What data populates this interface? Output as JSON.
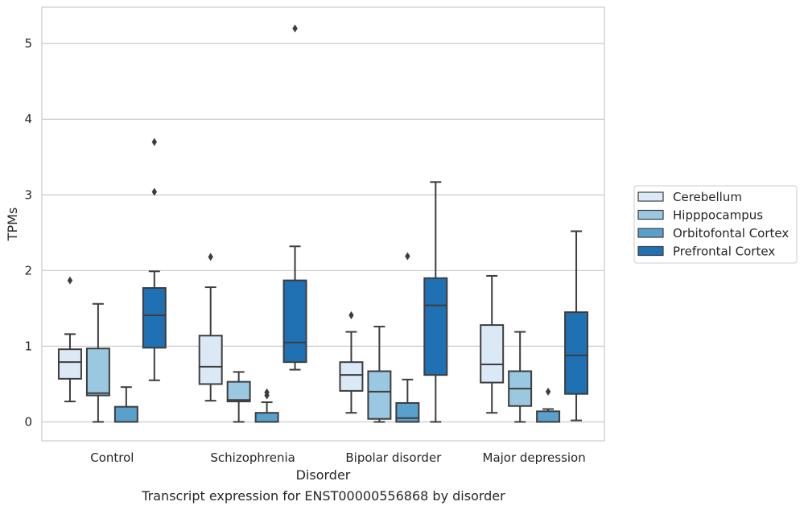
{
  "chart_data": {
    "type": "box",
    "title": "Transcript expression for ENST00000556868 by disorder",
    "xlabel": "Disorder",
    "ylabel": "TPMs",
    "ylim": [
      -0.25,
      5.48
    ],
    "yticks": [
      0,
      1,
      2,
      3,
      4,
      5
    ],
    "categories": [
      "Control",
      "Schizophrenia",
      "Bipolar disorder",
      "Major depression"
    ],
    "grid": "horizontal",
    "legend_position": "right",
    "series": [
      {
        "name": "Cerebellum",
        "color": "#dbe9f6",
        "boxes": [
          {
            "whislo": 0.27,
            "q1": 0.57,
            "med": 0.79,
            "q3": 0.96,
            "whishi": 1.16,
            "fliers": [
              1.87
            ]
          },
          {
            "whislo": 0.28,
            "q1": 0.5,
            "med": 0.73,
            "q3": 1.14,
            "whishi": 1.78,
            "fliers": [
              2.18
            ]
          },
          {
            "whislo": 0.12,
            "q1": 0.41,
            "med": 0.62,
            "q3": 0.79,
            "whishi": 1.19,
            "fliers": [
              1.41
            ]
          },
          {
            "whislo": 0.12,
            "q1": 0.52,
            "med": 0.76,
            "q3": 1.28,
            "whishi": 1.93,
            "fliers": []
          }
        ]
      },
      {
        "name": "Hipppocampus",
        "color": "#9ac8e0",
        "boxes": [
          {
            "whislo": 0.0,
            "q1": 0.35,
            "med": 0.38,
            "q3": 0.97,
            "whishi": 1.56,
            "fliers": []
          },
          {
            "whislo": 0.0,
            "q1": 0.27,
            "med": 0.29,
            "q3": 0.53,
            "whishi": 0.66,
            "fliers": []
          },
          {
            "whislo": 0.0,
            "q1": 0.04,
            "med": 0.4,
            "q3": 0.67,
            "whishi": 1.26,
            "fliers": []
          },
          {
            "whislo": 0.0,
            "q1": 0.21,
            "med": 0.44,
            "q3": 0.67,
            "whishi": 1.19,
            "fliers": []
          }
        ]
      },
      {
        "name": "Orbitofontal Cortex",
        "color": "#5aa0cd",
        "boxes": [
          {
            "whislo": 0.0,
            "q1": 0.0,
            "med": 0.0,
            "q3": 0.2,
            "whishi": 0.46,
            "fliers": []
          },
          {
            "whislo": 0.0,
            "q1": 0.0,
            "med": 0.0,
            "q3": 0.12,
            "whishi": 0.26,
            "fliers": [
              0.35,
              0.39
            ]
          },
          {
            "whislo": 0.0,
            "q1": 0.0,
            "med": 0.05,
            "q3": 0.25,
            "whishi": 0.56,
            "fliers": [
              2.19
            ]
          },
          {
            "whislo": 0.0,
            "q1": 0.0,
            "med": 0.0,
            "q3": 0.14,
            "whishi": 0.17,
            "fliers": [
              0.4
            ]
          }
        ]
      },
      {
        "name": "Prefrontal Cortex",
        "color": "#2070b4",
        "boxes": [
          {
            "whislo": 0.55,
            "q1": 0.98,
            "med": 1.41,
            "q3": 1.77,
            "whishi": 1.99,
            "fliers": [
              3.04,
              3.7
            ]
          },
          {
            "whislo": 0.69,
            "q1": 0.79,
            "med": 1.05,
            "q3": 1.87,
            "whishi": 2.32,
            "fliers": [
              5.2
            ]
          },
          {
            "whislo": 0.0,
            "q1": 0.62,
            "med": 1.54,
            "q3": 1.9,
            "whishi": 3.17,
            "fliers": []
          },
          {
            "whislo": 0.02,
            "q1": 0.37,
            "med": 0.88,
            "q3": 1.45,
            "whishi": 2.52,
            "fliers": []
          }
        ]
      }
    ]
  }
}
